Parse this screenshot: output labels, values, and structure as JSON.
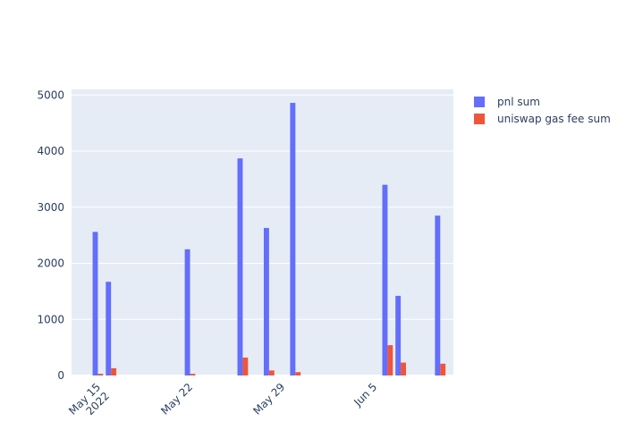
{
  "chart_data": {
    "type": "bar",
    "title": "",
    "xlabel": "",
    "ylabel": "",
    "x_axis": {
      "type": "date",
      "range": [
        "2022-05-13",
        "2022-06-11"
      ],
      "ticks": [
        {
          "date": "2022-05-15",
          "label": "May 15",
          "sublabel": "2022"
        },
        {
          "date": "2022-05-22",
          "label": "May 22",
          "sublabel": ""
        },
        {
          "date": "2022-05-29",
          "label": "May 29",
          "sublabel": ""
        },
        {
          "date": "2022-06-05",
          "label": "Jun 5",
          "sublabel": ""
        }
      ]
    },
    "ylim": [
      0,
      5100
    ],
    "yticks": [
      0,
      1000,
      2000,
      3000,
      4000,
      5000
    ],
    "grid": true,
    "legend_position": "top-right",
    "x": [
      "2022-05-15",
      "2022-05-16",
      "2022-05-22",
      "2022-05-26",
      "2022-05-28",
      "2022-05-30",
      "2022-06-06",
      "2022-06-07",
      "2022-06-10"
    ],
    "series": [
      {
        "name": "pnl sum",
        "color": "#636efa",
        "values": [
          2560,
          1670,
          2250,
          3870,
          2630,
          4860,
          3400,
          1420,
          2850
        ]
      },
      {
        "name": "uniswap gas fee sum",
        "color": "#ef553b",
        "values": [
          30,
          130,
          30,
          320,
          90,
          60,
          540,
          230,
          210
        ]
      }
    ]
  }
}
